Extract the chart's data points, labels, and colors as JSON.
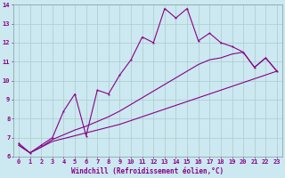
{
  "xlabel": "Windchill (Refroidissement éolien,°C)",
  "bg_color": "#cce8f0",
  "line_color": "#880088",
  "grid_color": "#aacccc",
  "x_data": [
    0,
    1,
    2,
    3,
    4,
    5,
    6,
    7,
    8,
    9,
    10,
    11,
    12,
    13,
    14,
    15,
    16,
    17,
    18,
    19,
    20,
    21,
    22,
    23
  ],
  "main_y": [
    6.7,
    6.2,
    6.6,
    7.0,
    8.4,
    9.3,
    7.1,
    9.5,
    9.3,
    10.3,
    11.1,
    12.3,
    12.0,
    13.8,
    13.3,
    13.8,
    12.1,
    12.5,
    12.0,
    11.8,
    11.5,
    10.7,
    11.2,
    10.5
  ],
  "lower_y": [
    6.6,
    6.2,
    6.5,
    6.8,
    6.95,
    7.1,
    7.25,
    7.4,
    7.55,
    7.7,
    7.9,
    8.1,
    8.3,
    8.5,
    8.7,
    8.9,
    9.1,
    9.3,
    9.5,
    9.7,
    9.9,
    10.1,
    10.3,
    10.5
  ],
  "upper_y": [
    6.6,
    6.2,
    6.5,
    6.9,
    7.15,
    7.4,
    7.6,
    7.85,
    8.1,
    8.4,
    8.75,
    9.1,
    9.45,
    9.8,
    10.15,
    10.5,
    10.85,
    11.1,
    11.2,
    11.4,
    11.5,
    10.7,
    11.2,
    10.5
  ],
  "ylim": [
    6,
    14
  ],
  "xlim_min": -0.5,
  "xlim_max": 23.5,
  "yticks": [
    6,
    7,
    8,
    9,
    10,
    11,
    12,
    13,
    14
  ],
  "xticks": [
    0,
    1,
    2,
    3,
    4,
    5,
    6,
    7,
    8,
    9,
    10,
    11,
    12,
    13,
    14,
    15,
    16,
    17,
    18,
    19,
    20,
    21,
    22,
    23
  ],
  "tick_fontsize": 5,
  "xlabel_fontsize": 5.5
}
